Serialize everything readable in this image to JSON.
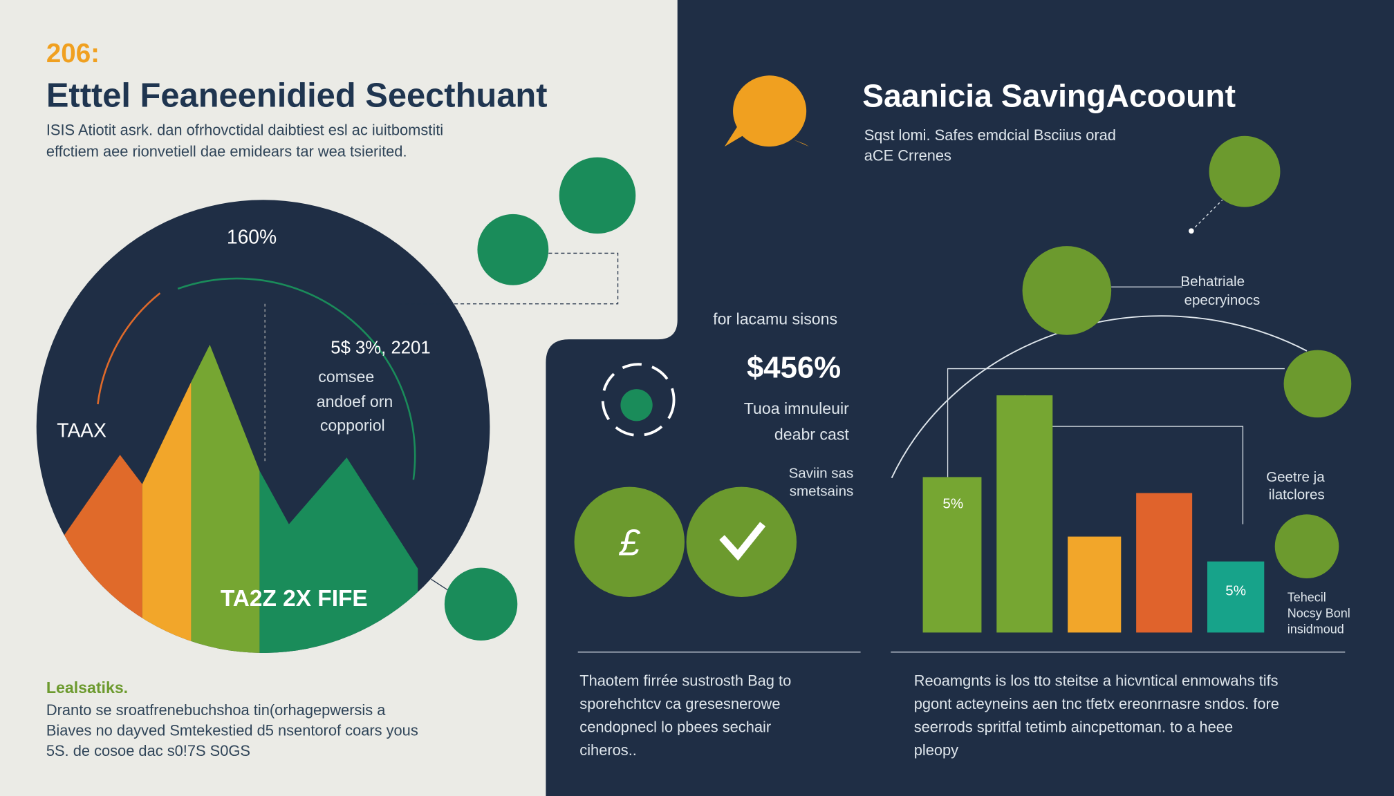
{
  "left": {
    "year": "206:",
    "title": "Etttel Feaneenidied Seecthuant",
    "subtitle": [
      "ISIS Atiotit asrk. dan ofrhovctidal daibtiest esl ac iuitbomstiti",
      "effctiem aee rionvetiell dae emidears tar wea tsierited."
    ],
    "pie_top": "160%",
    "pie_side": "TAAX",
    "pie_bottom": "TA2Z 2X FIFE",
    "note": [
      "5$ 3%, 2201",
      "comsee",
      "andoef orn",
      "copporiol"
    ],
    "footer_title": "Lealsatiks.",
    "footer": [
      "Dranto se sroatfrenebuchshoa tin(orhagepwersis a",
      "Biaves no dayved Smtekestied d5 nsentorof coars yous",
      "5S. de cosoe dac s0!7S S0GS"
    ]
  },
  "middle": {
    "label": "for lacamu sisons",
    "value": "$456%",
    "caption": [
      "Tuoa imnuleuir",
      "deabr cast"
    ],
    "small": [
      "Saviin sas",
      "smetsains"
    ],
    "paragraph": [
      "Thaotem firrée sustrosth Bag to",
      "sporehchtcv ca gresesnerowe",
      "cendopnecl lo pbees sechair",
      "ciheros.."
    ]
  },
  "right": {
    "title": "Saanicia SavingAcoount",
    "subtitle": [
      "Sqst lomi. Safes emdcial Bsciius orad",
      "aCE Crrenes"
    ],
    "label_a": [
      "Behatriale",
      "epecryinocs"
    ],
    "label_b": [
      "Geetre ja",
      "ilatclores"
    ],
    "label_c": [
      "Tehecil",
      "Nocsy Bonl",
      "insidmoud"
    ],
    "bar_labels": [
      "5%",
      "5%"
    ],
    "paragraph": [
      "Reoamgnts is los tto steitse a hicvntical enmowahs tifs",
      "pgont acteyneins aen tnc tfetx ereonrnasre sndos. fore",
      "seerrods spritfal tetimb aincpettoman. to a heee",
      "pleopy"
    ]
  }
}
